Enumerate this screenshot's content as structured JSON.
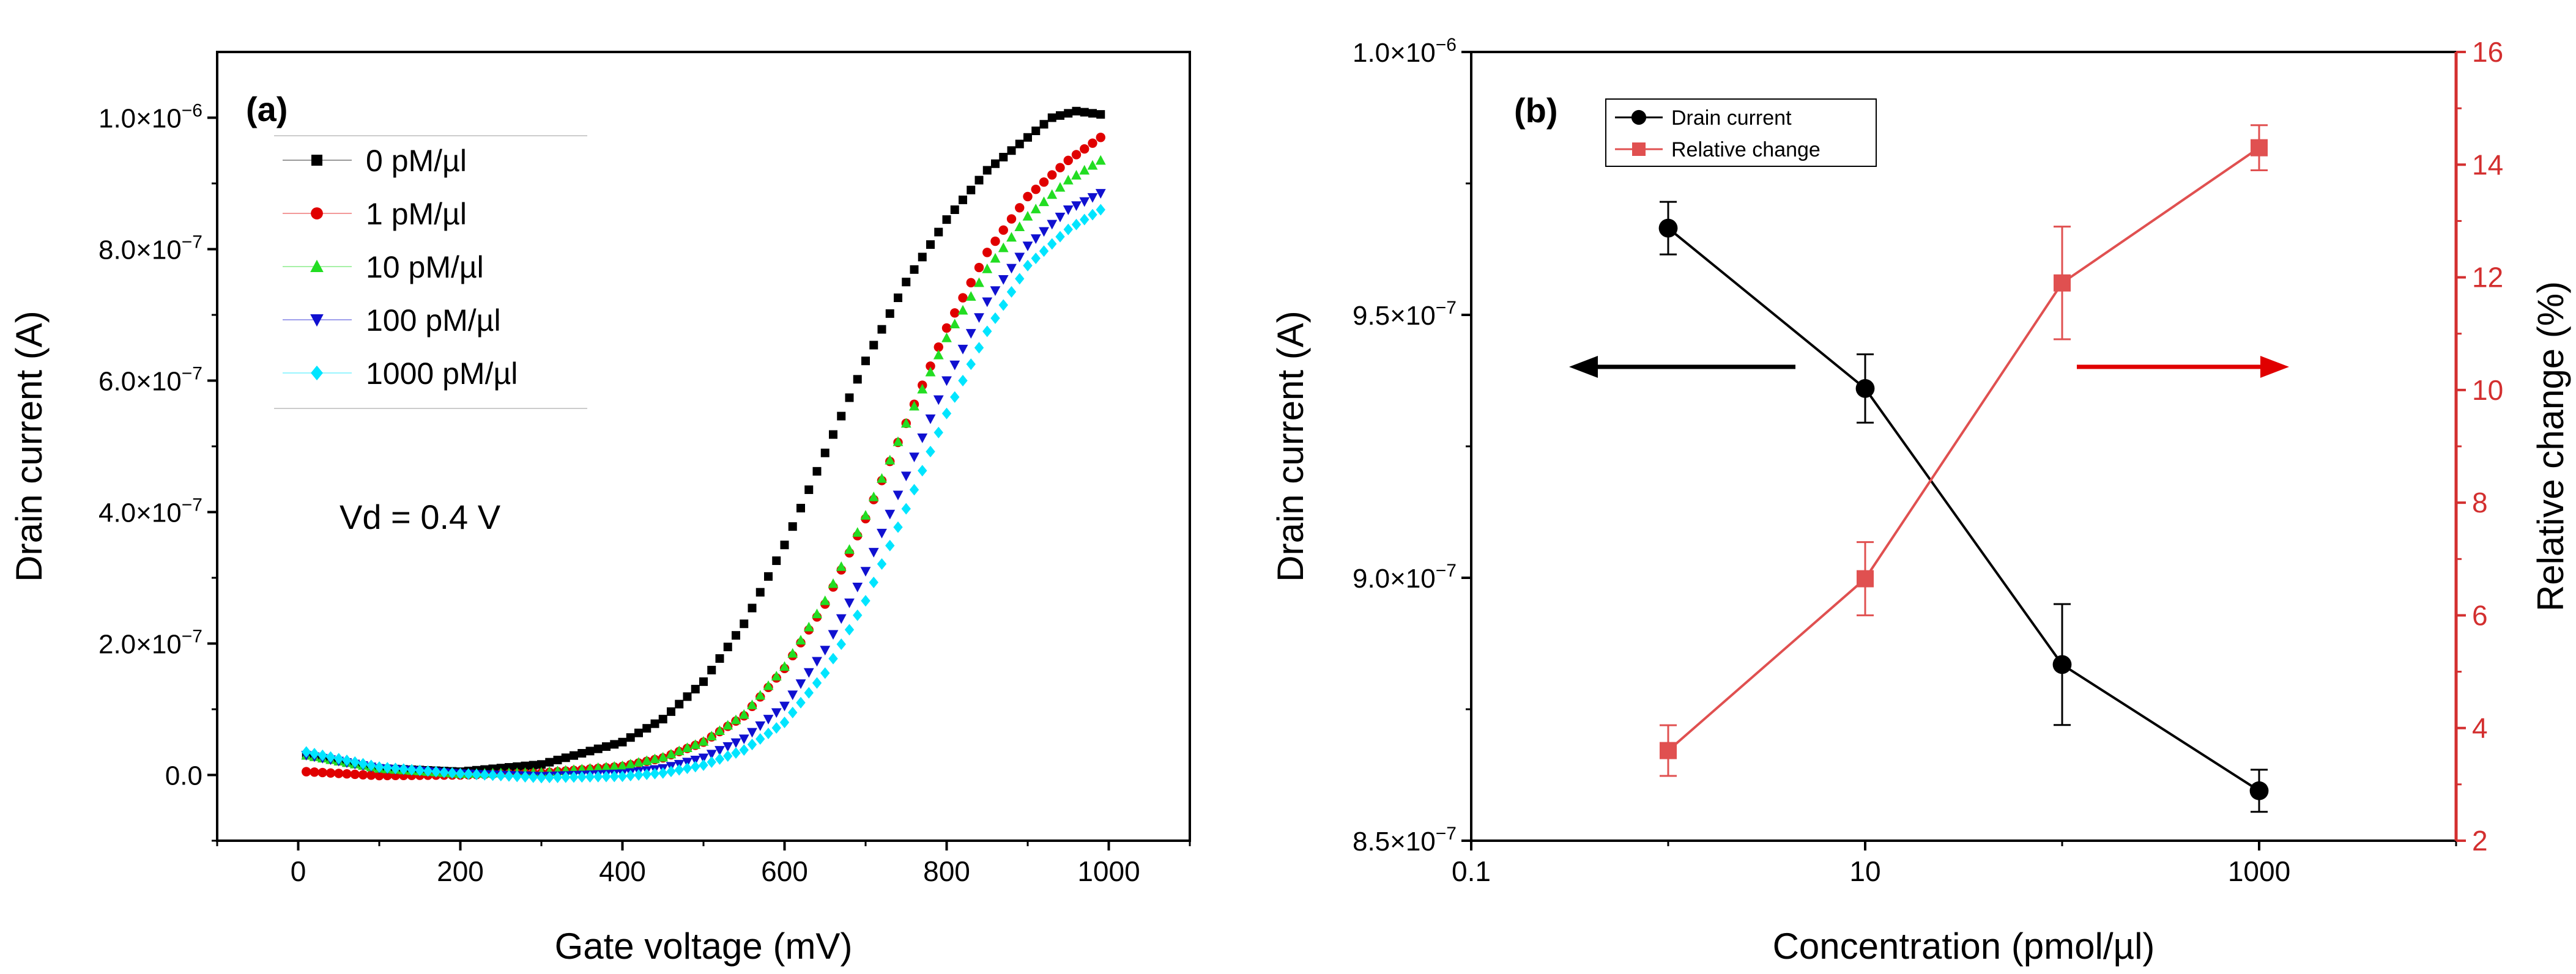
{
  "colors": {
    "axis": "#000000",
    "right_axis": "#d32f2f",
    "panel_a_series": [
      "#000000",
      "#e00000",
      "#22dd22",
      "#1010d0",
      "#00e5ff"
    ],
    "panel_b_drain": "#000000",
    "panel_b_relative": "#e05050",
    "arrow_left": "#000000",
    "arrow_right": "#e00000"
  },
  "chart_data": [
    {
      "type": "scatter",
      "panel_label": "(a)",
      "xlabel": "Gate voltage (mV)",
      "ylabel": "Drain current (A)",
      "xlim": [
        -100,
        1100
      ],
      "ylim": [
        -1e-07,
        1.1e-06
      ],
      "xticks": [
        0,
        200,
        400,
        600,
        800,
        1000
      ],
      "xtick_labels": [
        "0",
        "200",
        "400",
        "600",
        "800",
        "1000"
      ],
      "yticks": [
        0,
        2e-07,
        4e-07,
        6e-07,
        8e-07,
        1e-06
      ],
      "ytick_labels": [
        {
          "mant": "0.0",
          "exp": ""
        },
        {
          "mant": "2.0×10",
          "exp": "−7"
        },
        {
          "mant": "4.0×10",
          "exp": "−7"
        },
        {
          "mant": "6.0×10",
          "exp": "−7"
        },
        {
          "mant": "8.0×10",
          "exp": "−7"
        },
        {
          "mant": "1.0×10",
          "exp": "−6"
        }
      ],
      "annotation": "Vd = 0.4 V",
      "legend_position": "top-left",
      "x_range": [
        10,
        990
      ],
      "x_step": 10,
      "series": [
        {
          "name": "0 pM/µl",
          "marker": "square",
          "points": [
            [
              10,
              3e-08
            ],
            [
              100,
              1e-08
            ],
            [
              200,
              5e-09
            ],
            [
              300,
              1.6e-08
            ],
            [
              400,
              5e-08
            ],
            [
              450,
              8.5e-08
            ],
            [
              500,
              1.42e-07
            ],
            [
              550,
              2.3e-07
            ],
            [
              600,
              3.5e-07
            ],
            [
              650,
              4.9e-07
            ],
            [
              700,
              6.3e-07
            ],
            [
              750,
              7.5e-07
            ],
            [
              800,
              8.45e-07
            ],
            [
              850,
              9.2e-07
            ],
            [
              900,
              9.7e-07
            ],
            [
              930,
              1e-06
            ],
            [
              960,
              1.01e-06
            ],
            [
              990,
              1.005e-06
            ]
          ]
        },
        {
          "name": "1 pM/µl",
          "marker": "circle",
          "points": [
            [
              10,
              5e-09
            ],
            [
              100,
              -1e-09
            ],
            [
              200,
              0
            ],
            [
              300,
              3e-09
            ],
            [
              400,
              1.3e-08
            ],
            [
              450,
              2.6e-08
            ],
            [
              500,
              5e-08
            ],
            [
              550,
              9e-08
            ],
            [
              600,
              1.62e-07
            ],
            [
              650,
              2.6e-07
            ],
            [
              700,
              3.9e-07
            ],
            [
              750,
              5.35e-07
            ],
            [
              800,
              6.8e-07
            ],
            [
              850,
              7.95e-07
            ],
            [
              900,
              8.8e-07
            ],
            [
              950,
              9.35e-07
            ],
            [
              990,
              9.7e-07
            ]
          ]
        },
        {
          "name": "10 pM/µl",
          "marker": "triangle-up",
          "points": [
            [
              10,
              3e-08
            ],
            [
              100,
              1e-08
            ],
            [
              200,
              2e-09
            ],
            [
              300,
              4e-09
            ],
            [
              400,
              1.4e-08
            ],
            [
              450,
              2.7e-08
            ],
            [
              500,
              5.1e-08
            ],
            [
              550,
              9.2e-08
            ],
            [
              600,
              1.65e-07
            ],
            [
              650,
              2.65e-07
            ],
            [
              700,
              3.95e-07
            ],
            [
              750,
              5.35e-07
            ],
            [
              800,
              6.65e-07
            ],
            [
              850,
              7.7e-07
            ],
            [
              900,
              8.5e-07
            ],
            [
              950,
              9.05e-07
            ],
            [
              990,
              9.35e-07
            ]
          ]
        },
        {
          "name": "100 pM/µl",
          "marker": "triangle-down",
          "points": [
            [
              10,
              3e-08
            ],
            [
              100,
              1e-08
            ],
            [
              200,
              2e-09
            ],
            [
              300,
              -2e-09
            ],
            [
              400,
              2e-09
            ],
            [
              450,
              1e-08
            ],
            [
              500,
              2.6e-08
            ],
            [
              550,
              5.5e-08
            ],
            [
              600,
              1.05e-07
            ],
            [
              650,
              1.9e-07
            ],
            [
              700,
              3.1e-07
            ],
            [
              750,
              4.55e-07
            ],
            [
              800,
              6e-07
            ],
            [
              850,
              7.2e-07
            ],
            [
              900,
              8.05e-07
            ],
            [
              950,
              8.6e-07
            ],
            [
              990,
              8.85e-07
            ]
          ]
        },
        {
          "name": "1000 pM/µl",
          "marker": "diamond",
          "points": [
            [
              10,
              3.5e-08
            ],
            [
              100,
              1.2e-08
            ],
            [
              200,
              2e-09
            ],
            [
              300,
              -4e-09
            ],
            [
              400,
              -2e-09
            ],
            [
              450,
              3e-09
            ],
            [
              500,
              1.5e-08
            ],
            [
              550,
              3.8e-08
            ],
            [
              600,
              8e-08
            ],
            [
              650,
              1.55e-07
            ],
            [
              700,
              2.65e-07
            ],
            [
              750,
              4.05e-07
            ],
            [
              800,
              5.5e-07
            ],
            [
              850,
              6.75e-07
            ],
            [
              900,
              7.75e-07
            ],
            [
              950,
              8.3e-07
            ],
            [
              990,
              8.6e-07
            ]
          ]
        }
      ]
    },
    {
      "type": "line",
      "panel_label": "(b)",
      "xscale": "log",
      "xlabel": "Concentration (pmol/µl)",
      "ylabel_left": "Drain current (A)",
      "ylabel_right": "Relative change (%)",
      "xlim": [
        0.1,
        10000
      ],
      "ylim_left": [
        8.5e-07,
        1e-06
      ],
      "ylim_right": [
        2,
        16
      ],
      "xticks": [
        0.1,
        10,
        1000
      ],
      "xtick_labels": [
        "0.1",
        "10",
        "1000"
      ],
      "yticks_left": [
        8.5e-07,
        9e-07,
        9.5e-07,
        1e-06
      ],
      "ytick_labels_left": [
        {
          "mant": "8.5×10",
          "exp": "−7"
        },
        {
          "mant": "9.0×10",
          "exp": "−7"
        },
        {
          "mant": "9.5×10",
          "exp": "−7"
        },
        {
          "mant": "1.0×10",
          "exp": "−6"
        }
      ],
      "yticks_right": [
        2,
        4,
        6,
        8,
        10,
        12,
        14,
        16
      ],
      "ytick_labels_right": [
        "2",
        "4",
        "6",
        "8",
        "10",
        "12",
        "14",
        "16"
      ],
      "legend_position": "top-left",
      "series": [
        {
          "name": "Drain current",
          "axis": "left",
          "marker": "circle",
          "x": [
            1,
            10,
            100,
            1000
          ],
          "y": [
            9.665e-07,
            9.36e-07,
            8.835e-07,
            8.595e-07
          ],
          "err": [
            5e-09,
            6.5e-09,
            1.15e-08,
            4e-09
          ]
        },
        {
          "name": "Relative change",
          "axis": "right",
          "marker": "square",
          "x": [
            1,
            10,
            100,
            1000
          ],
          "y": [
            3.6,
            6.65,
            11.9,
            14.3
          ],
          "err": [
            0.45,
            0.65,
            1.0,
            0.4
          ]
        }
      ]
    }
  ]
}
